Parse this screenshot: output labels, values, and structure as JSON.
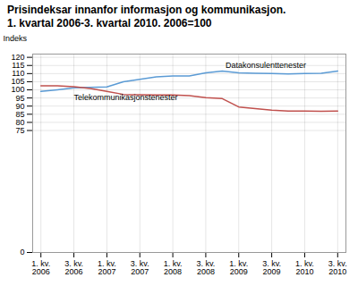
{
  "chart_data": {
    "type": "line",
    "title": "Prisindeksar innanfor informasjon og kommunikasjon.",
    "subtitle": "1. kvartal 2006-3. kvartal 2010. 2006=100",
    "ylabel": "Indeks",
    "categories": [
      "1. kv.\n2006",
      null,
      "3. kv.\n2006",
      null,
      "1. kv.\n2007",
      null,
      "3. kv.\n2007",
      null,
      "1. kv.\n2008",
      null,
      "3. kv.\n2008",
      null,
      "1. kv.\n2009",
      null,
      "3. kv.\n2009",
      null,
      "1. kv.\n2010",
      null,
      "3. kv.\n2010"
    ],
    "series": [
      {
        "name": "Datakonsulenttenester",
        "color": "#5b9bd5",
        "values": [
          99.0,
          100.0,
          101.2,
          101.5,
          101.8,
          105.0,
          106.5,
          108.0,
          108.5,
          108.5,
          110.5,
          111.5,
          110.5,
          110.2,
          110.0,
          109.8,
          110.0,
          110.2,
          111.5
        ]
      },
      {
        "name": "Telekommunikasjonstenester",
        "color": "#c0504d",
        "values": [
          102.5,
          102.5,
          102.0,
          100.8,
          99.0,
          97.2,
          97.0,
          96.8,
          96.8,
          96.5,
          95.2,
          94.6,
          89.5,
          88.5,
          87.5,
          87.0,
          87.0,
          86.8,
          87.0
        ]
      }
    ],
    "ylim": [
      0,
      122
    ],
    "yticks": [
      0,
      75,
      80,
      85,
      90,
      95,
      100,
      105,
      110,
      115,
      120
    ],
    "grid": true,
    "annotations": [
      {
        "text": "Datakonsulenttenester",
        "x": 11.2,
        "y": 113.5
      },
      {
        "text": "Telekommunikasjonstenester",
        "x": 2.0,
        "y": 93.5
      }
    ]
  }
}
